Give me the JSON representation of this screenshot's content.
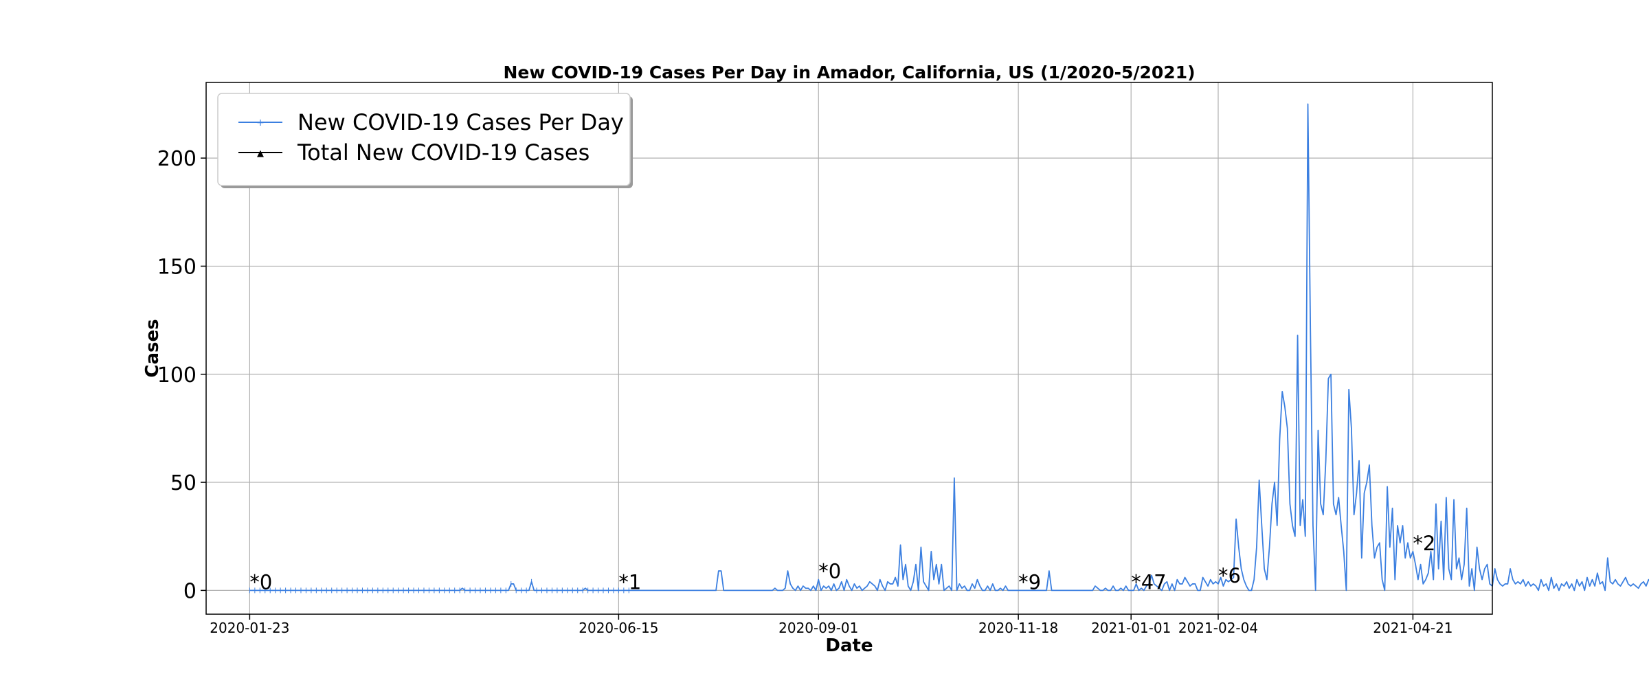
{
  "chart_data": {
    "type": "line",
    "title": "New COVID-19 Cases Per Day in Amador, California, US (1/2020-5/2021)",
    "xlabel": "Date",
    "ylabel": "Cases",
    "x_range": [
      "2020-01-06",
      "2021-05-22"
    ],
    "ylim": [
      -11,
      235
    ],
    "yticks": [
      0,
      50,
      100,
      150,
      200
    ],
    "xticks": [
      "2020-01-23",
      "2020-06-15",
      "2020-09-01",
      "2020-11-18",
      "2021-01-01",
      "2021-02-04",
      "2021-04-21"
    ],
    "grid": true,
    "legend_position": "top-left",
    "colors": {
      "series_line": "#3b7fe0",
      "total_marker": "#000000"
    },
    "series": [
      {
        "name": "New COVID-19 Cases Per Day",
        "start_date": "2020-01-23",
        "values": [
          0,
          0,
          0,
          0,
          0,
          0,
          0,
          0,
          0,
          0,
          0,
          0,
          0,
          0,
          0,
          0,
          0,
          0,
          0,
          0,
          0,
          0,
          0,
          0,
          0,
          0,
          0,
          0,
          0,
          0,
          0,
          0,
          0,
          0,
          0,
          0,
          0,
          0,
          0,
          0,
          0,
          0,
          0,
          0,
          0,
          0,
          0,
          0,
          0,
          0,
          0,
          0,
          0,
          0,
          0,
          0,
          0,
          0,
          0,
          0,
          0,
          0,
          0,
          0,
          0,
          0,
          0,
          0,
          0,
          0,
          0,
          0,
          0,
          0,
          0,
          0,
          0,
          0,
          0,
          0,
          0,
          0,
          0,
          1,
          0,
          0,
          0,
          0,
          0,
          0,
          0,
          0,
          0,
          0,
          0,
          0,
          0,
          0,
          0,
          0,
          0,
          0,
          3,
          3,
          0,
          0,
          0,
          0,
          0,
          0,
          4,
          0,
          0,
          0,
          0,
          0,
          0,
          0,
          0,
          0,
          0,
          0,
          0,
          0,
          0,
          0,
          0,
          0,
          0,
          0,
          0,
          1,
          0,
          0,
          0,
          0,
          0,
          0,
          0,
          0,
          0,
          0,
          0,
          0,
          0,
          0,
          0,
          0,
          0,
          0,
          0,
          0,
          0,
          0,
          0,
          0,
          0,
          0,
          0,
          0,
          0,
          0,
          0,
          0,
          0,
          0,
          0,
          0,
          0,
          0,
          0,
          0,
          0,
          0,
          0,
          0,
          0,
          0,
          0,
          0,
          0,
          0,
          0,
          9,
          9,
          0,
          0,
          0,
          0,
          0,
          0,
          0,
          0,
          0,
          0,
          0,
          0,
          0,
          0,
          0,
          0,
          0,
          0,
          0,
          0,
          1,
          0,
          0,
          0,
          1,
          9,
          3,
          1,
          0,
          2,
          0,
          2,
          1,
          1,
          0,
          2,
          0,
          5,
          0,
          2,
          1,
          2,
          0,
          3,
          0,
          1,
          4,
          0,
          5,
          2,
          0,
          3,
          1,
          2,
          0,
          1,
          2,
          4,
          3,
          2,
          0,
          5,
          2,
          0,
          4,
          3,
          3,
          6,
          2,
          21,
          5,
          12,
          2,
          0,
          4,
          12,
          0,
          20,
          4,
          2,
          0,
          18,
          5,
          12,
          3,
          12,
          0,
          1,
          2,
          0,
          52,
          0,
          3,
          1,
          2,
          0,
          0,
          3,
          1,
          5,
          2,
          0,
          0,
          2,
          0,
          3,
          0,
          0,
          1,
          0,
          2,
          0,
          0,
          0,
          0,
          0,
          0,
          0,
          0,
          0,
          0,
          0,
          0,
          0,
          0,
          0,
          0,
          9,
          0,
          0,
          0,
          0,
          0,
          0,
          0,
          0,
          0,
          0,
          0,
          0,
          0,
          0,
          0,
          0,
          0,
          2,
          1,
          0,
          0,
          1,
          0,
          0,
          2,
          0,
          0,
          1,
          0,
          2,
          0,
          0,
          0,
          3,
          0,
          1,
          0,
          2,
          3,
          7,
          3,
          2,
          1,
          0,
          3,
          4,
          0,
          3,
          0,
          5,
          3,
          3,
          6,
          4,
          2,
          3,
          3,
          0,
          0,
          6,
          4,
          2,
          5,
          3,
          4,
          3,
          6,
          2,
          5,
          4,
          5,
          6,
          33,
          20,
          10,
          5,
          2,
          0,
          0,
          5,
          20,
          51,
          30,
          10,
          5,
          20,
          40,
          50,
          30,
          70,
          92,
          85,
          75,
          40,
          30,
          25,
          118,
          30,
          42,
          25,
          225,
          120,
          30,
          0,
          74,
          40,
          35,
          60,
          98,
          100,
          40,
          35,
          43,
          30,
          18,
          0,
          93,
          75,
          35,
          45,
          60,
          15,
          45,
          50,
          58,
          30,
          15,
          20,
          22,
          5,
          0,
          48,
          20,
          38,
          5,
          30,
          22,
          30,
          15,
          22,
          15,
          18,
          12,
          5,
          12,
          3,
          5,
          8,
          18,
          5,
          40,
          10,
          32,
          5,
          43,
          10,
          5,
          42,
          10,
          15,
          5,
          12,
          38,
          2,
          10,
          0,
          20,
          10,
          5,
          10,
          12,
          3,
          2,
          10,
          5,
          3,
          2,
          3,
          3,
          10,
          5,
          3,
          4,
          3,
          5,
          2,
          4,
          2,
          3,
          2,
          0,
          5,
          2,
          3,
          0,
          6,
          1,
          3,
          0,
          3,
          2,
          4,
          1,
          3,
          0,
          5,
          2,
          4,
          0,
          6,
          2,
          5,
          2,
          8,
          3,
          4,
          0,
          15,
          4,
          3,
          5,
          3,
          2,
          4,
          6,
          3,
          2,
          3,
          2,
          1,
          3,
          4,
          2,
          5,
          3,
          2,
          4,
          2,
          3,
          3,
          1,
          3,
          2,
          0,
          2,
          3,
          2,
          3,
          0
        ]
      },
      {
        "name": "Total New COVID-19 Cases",
        "annotations": [
          {
            "date": "2020-01-23",
            "label": "*0"
          },
          {
            "date": "2020-06-15",
            "label": "*1"
          },
          {
            "date": "2020-09-01",
            "label": "*0"
          },
          {
            "date": "2020-11-18",
            "label": "*9"
          },
          {
            "date": "2021-01-01",
            "label": "*47"
          },
          {
            "date": "2021-02-04",
            "label": "*6"
          },
          {
            "date": "2021-04-21",
            "label": "*2"
          }
        ]
      }
    ]
  }
}
